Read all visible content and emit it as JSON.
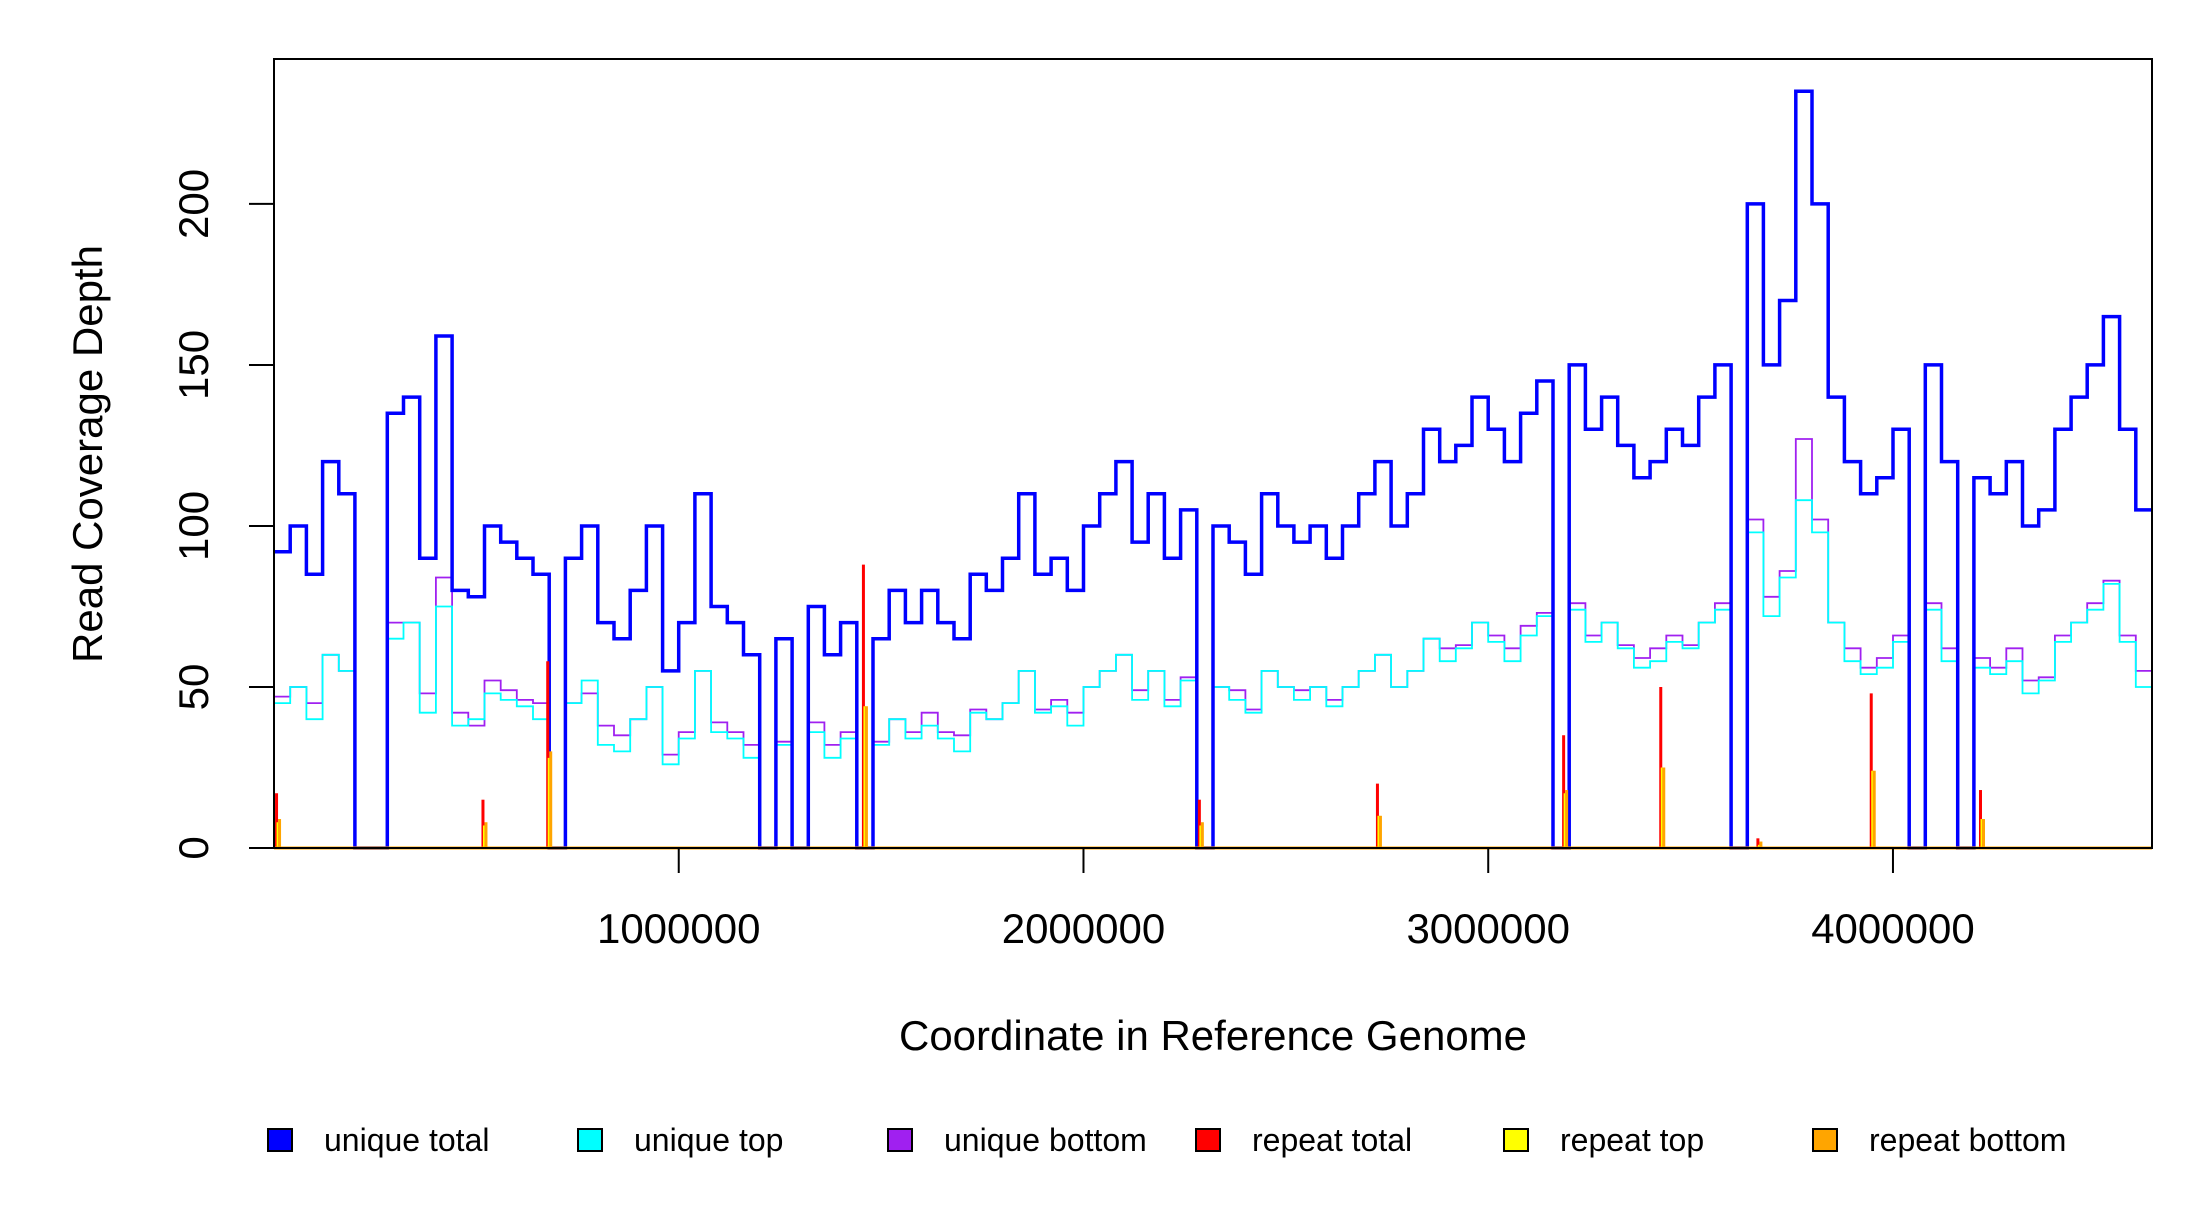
{
  "chart_data": {
    "type": "line",
    "title": "",
    "xlabel": "Coordinate in Reference Genome",
    "ylabel": "Read Coverage Depth",
    "xlim": [
      0,
      4640000
    ],
    "ylim": [
      0,
      245
    ],
    "xticks": [
      1000000,
      2000000,
      3000000,
      4000000
    ],
    "xtick_labels": [
      "1000000",
      "2000000",
      "3000000",
      "4000000"
    ],
    "yticks": [
      0,
      50,
      100,
      150,
      200
    ],
    "ytick_labels": [
      "0",
      "50",
      "100",
      "150",
      "200"
    ],
    "grid": false,
    "legend_position": "bottom",
    "bin_size": 40000,
    "series": [
      {
        "name": "unique total",
        "color": "#0000FF",
        "values": [
          92,
          100,
          85,
          120,
          110,
          0,
          0,
          135,
          140,
          90,
          159,
          80,
          78,
          100,
          95,
          90,
          85,
          0,
          90,
          100,
          70,
          65,
          80,
          100,
          55,
          70,
          110,
          75,
          70,
          60,
          0,
          65,
          0,
          75,
          60,
          70,
          0,
          65,
          80,
          70,
          80,
          70,
          65,
          85,
          80,
          90,
          110,
          85,
          90,
          80,
          100,
          110,
          120,
          95,
          110,
          90,
          105,
          0,
          100,
          95,
          85,
          110,
          100,
          95,
          100,
          90,
          100,
          110,
          120,
          100,
          110,
          130,
          120,
          125,
          140,
          130,
          120,
          135,
          145,
          0,
          150,
          130,
          140,
          125,
          115,
          120,
          130,
          125,
          140,
          150,
          0,
          200,
          150,
          170,
          235,
          200,
          140,
          120,
          110,
          115,
          130,
          0,
          150,
          120,
          0,
          115,
          110,
          120,
          100,
          105,
          130,
          140,
          150,
          165,
          130,
          105
        ]
      },
      {
        "name": "unique top",
        "color": "#00FFFF",
        "values": [
          45,
          50,
          40,
          60,
          55,
          0,
          0,
          65,
          70,
          42,
          75,
          38,
          40,
          48,
          46,
          44,
          40,
          0,
          45,
          52,
          32,
          30,
          40,
          50,
          26,
          34,
          55,
          36,
          34,
          28,
          0,
          32,
          0,
          36,
          28,
          34,
          0,
          32,
          40,
          34,
          38,
          34,
          30,
          42,
          40,
          45,
          55,
          42,
          44,
          38,
          50,
          55,
          60,
          46,
          55,
          44,
          52,
          0,
          50,
          46,
          42,
          55,
          50,
          46,
          50,
          44,
          50,
          55,
          60,
          50,
          55,
          65,
          58,
          62,
          70,
          64,
          58,
          66,
          72,
          0,
          74,
          64,
          70,
          62,
          56,
          58,
          64,
          62,
          70,
          74,
          0,
          98,
          72,
          84,
          108,
          98,
          70,
          58,
          54,
          56,
          64,
          0,
          74,
          58,
          0,
          56,
          54,
          58,
          48,
          52,
          64,
          70,
          74,
          82,
          64,
          50
        ]
      },
      {
        "name": "unique bottom",
        "color": "#A020F0",
        "values": [
          47,
          50,
          45,
          60,
          55,
          0,
          0,
          70,
          70,
          48,
          84,
          42,
          38,
          52,
          49,
          46,
          45,
          0,
          45,
          48,
          38,
          35,
          40,
          50,
          29,
          36,
          55,
          39,
          36,
          32,
          0,
          33,
          0,
          39,
          32,
          36,
          0,
          33,
          40,
          36,
          42,
          36,
          35,
          43,
          40,
          45,
          55,
          43,
          46,
          42,
          50,
          55,
          60,
          49,
          55,
          46,
          53,
          0,
          50,
          49,
          43,
          55,
          50,
          49,
          50,
          46,
          50,
          55,
          60,
          50,
          55,
          65,
          62,
          63,
          70,
          66,
          62,
          69,
          73,
          0,
          76,
          66,
          70,
          63,
          59,
          62,
          66,
          63,
          70,
          76,
          0,
          102,
          78,
          86,
          127,
          102,
          70,
          62,
          56,
          59,
          66,
          0,
          76,
          62,
          0,
          59,
          56,
          62,
          52,
          53,
          66,
          70,
          76,
          83,
          66,
          55
        ]
      },
      {
        "name": "repeat total",
        "color": "#FF0000",
        "points": [
          [
            10000,
            17
          ],
          [
            520000,
            15
          ],
          [
            680000,
            58
          ],
          [
            1460000,
            88
          ],
          [
            2290000,
            15
          ],
          [
            2730000,
            20
          ],
          [
            3190000,
            35
          ],
          [
            3430000,
            50
          ],
          [
            3670000,
            3
          ],
          [
            3950000,
            48
          ],
          [
            4220000,
            18
          ]
        ]
      },
      {
        "name": "repeat top",
        "color": "#FFFF00",
        "points": [
          [
            10000,
            8
          ],
          [
            520000,
            7
          ],
          [
            680000,
            28
          ],
          [
            1460000,
            44
          ],
          [
            2290000,
            7
          ],
          [
            2730000,
            10
          ],
          [
            3190000,
            17
          ],
          [
            3430000,
            25
          ],
          [
            3670000,
            1
          ],
          [
            3950000,
            24
          ],
          [
            4220000,
            9
          ]
        ]
      },
      {
        "name": "repeat bottom",
        "color": "#FFA500",
        "points": [
          [
            10000,
            9
          ],
          [
            520000,
            8
          ],
          [
            680000,
            30
          ],
          [
            1460000,
            44
          ],
          [
            2290000,
            8
          ],
          [
            2730000,
            10
          ],
          [
            3190000,
            18
          ],
          [
            3430000,
            25
          ],
          [
            3670000,
            2
          ],
          [
            3950000,
            24
          ],
          [
            4220000,
            9
          ]
        ]
      }
    ],
    "legend": [
      {
        "label": "unique total",
        "color": "#0000FF"
      },
      {
        "label": "unique top",
        "color": "#00FFFF"
      },
      {
        "label": "unique bottom",
        "color": "#A020F0"
      },
      {
        "label": "repeat total",
        "color": "#FF0000"
      },
      {
        "label": "repeat top",
        "color": "#FFFF00"
      },
      {
        "label": "repeat bottom",
        "color": "#FFA500"
      }
    ]
  }
}
